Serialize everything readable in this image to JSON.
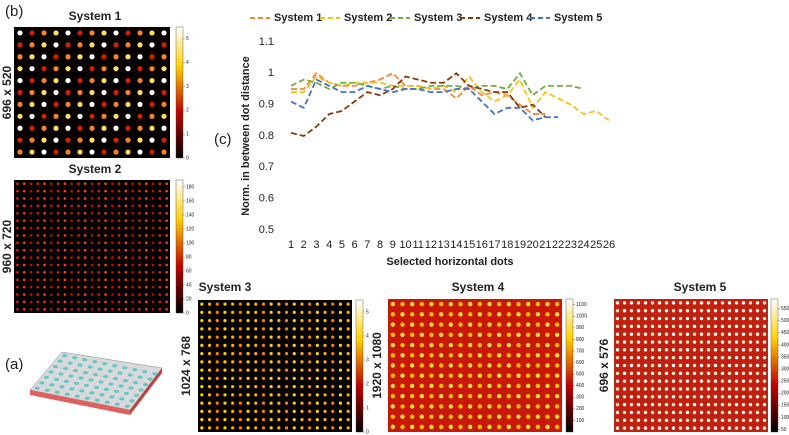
{
  "chart_data": {
    "type": "line",
    "ylabel": "Norm. in between dot distance",
    "xlabel": "Selected horizontal dots",
    "categories": [
      "1",
      "2",
      "3",
      "4",
      "5",
      "6",
      "7",
      "8",
      "9",
      "10",
      "11",
      "12",
      "13",
      "14",
      "15",
      "16",
      "17",
      "18",
      "19",
      "20",
      "21",
      "22",
      "23",
      "24",
      "25",
      "26"
    ],
    "series": [
      {
        "name": "System 1",
        "color": "#f0883a",
        "values": [
          0.95,
          0.95,
          1.0,
          0.97,
          0.96,
          0.96,
          0.97,
          0.98,
          1.0,
          0.96,
          0.96,
          0.95,
          0.95,
          0.92,
          0.96,
          0.93,
          0.94,
          0.93,
          0.9,
          0.87,
          0.87,
          null,
          null,
          null,
          null,
          null
        ]
      },
      {
        "name": "System 2",
        "color": "#f5c21b",
        "values": [
          0.94,
          0.94,
          0.99,
          0.97,
          0.96,
          0.97,
          0.97,
          0.97,
          0.96,
          0.96,
          0.96,
          0.95,
          0.96,
          0.94,
          0.99,
          0.94,
          0.91,
          0.93,
          0.98,
          0.89,
          0.94,
          0.92,
          0.9,
          0.87,
          0.88,
          0.85
        ]
      },
      {
        "name": "System 3",
        "color": "#70ad47",
        "values": [
          0.96,
          0.98,
          0.97,
          0.95,
          0.97,
          0.97,
          0.96,
          0.95,
          0.96,
          0.95,
          0.95,
          0.96,
          0.96,
          0.96,
          0.95,
          0.96,
          0.96,
          0.95,
          1.0,
          0.93,
          0.96,
          0.96,
          0.96,
          0.95,
          null,
          null
        ]
      },
      {
        "name": "System 4",
        "color": "#843c0c",
        "values": [
          0.81,
          0.8,
          0.83,
          0.87,
          0.88,
          0.91,
          0.94,
          0.93,
          0.95,
          0.99,
          0.98,
          0.97,
          0.97,
          1.0,
          0.96,
          0.95,
          0.94,
          0.94,
          0.89,
          0.9,
          0.86,
          null,
          null,
          null,
          null,
          null
        ]
      },
      {
        "name": "System 5",
        "color": "#4472c4",
        "values": [
          0.91,
          0.89,
          0.98,
          0.96,
          0.94,
          0.94,
          0.96,
          0.95,
          0.94,
          0.95,
          0.95,
          0.94,
          0.94,
          0.95,
          0.95,
          0.91,
          0.87,
          0.89,
          0.89,
          0.85,
          0.86,
          0.86,
          null,
          null,
          null,
          null
        ]
      }
    ],
    "ylim": [
      0.5,
      1.1
    ],
    "yticks": [
      0.5,
      0.6,
      0.7,
      0.8,
      0.9,
      {
        "value": 1.0,
        "label": "1"
      },
      1.1
    ],
    "legend": "top",
    "dashed": true
  },
  "panel_labels": [
    "(a)",
    "(b)",
    "(c)"
  ],
  "panels": [
    {
      "title": "System 1",
      "resolution": "696 x 520",
      "clim": [
        0,
        5.5
      ],
      "colorbar_ticks": [
        0,
        1,
        2,
        3,
        4,
        5
      ]
    },
    {
      "title": "System 2",
      "resolution": "960 x 720",
      "clim": [
        0,
        190
      ],
      "colorbar_ticks": [
        0,
        20,
        40,
        60,
        80,
        100,
        120,
        140,
        160,
        180
      ]
    },
    {
      "title": "System 3",
      "resolution": "1024 x 768",
      "clim": [
        0,
        5.5
      ],
      "colorbar_ticks": [
        0,
        1,
        2,
        3,
        4,
        5
      ]
    },
    {
      "title": "System 4",
      "resolution": "1920 x 1080",
      "clim": [
        0,
        1150
      ],
      "colorbar_ticks": [
        100,
        200,
        300,
        400,
        500,
        600,
        700,
        800,
        900,
        1000,
        1100
      ]
    },
    {
      "title": "System 5",
      "resolution": "696 x 576",
      "clim": [
        40,
        590
      ],
      "colorbar_ticks": [
        50,
        100,
        150,
        200,
        250,
        300,
        350,
        400,
        450,
        500,
        550
      ]
    }
  ]
}
